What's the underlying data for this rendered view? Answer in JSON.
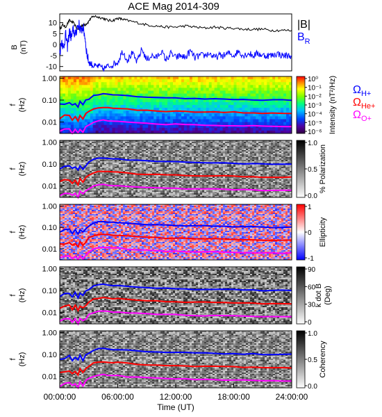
{
  "title": "ACE Mag 2014-309",
  "colors": {
    "btotal": "#000000",
    "br": "#0000ff",
    "h_plus": "#0000ff",
    "he_plus": "#ff0000",
    "o_plus": "#ff00ff"
  },
  "chart_data": [
    {
      "type": "line",
      "panel": "magnetic-field",
      "ylabel_line1": "B",
      "ylabel_line2": "(nT)",
      "yticks": [
        "10",
        "5",
        "0",
        "-5",
        "-10"
      ],
      "ylim": [
        -12,
        14
      ],
      "xlim_hours": [
        0,
        24
      ],
      "legend": [
        {
          "label": "|B|",
          "color": "#000000"
        },
        {
          "label": "B",
          "sub": "R",
          "color": "#0000ff"
        }
      ],
      "series": [
        {
          "name": "|B|",
          "x": [
            0,
            0.3,
            0.6,
            1.0,
            1.4,
            1.8,
            2.1,
            2.4,
            2.6,
            2.9,
            3.2,
            3.6,
            4.0,
            4.5,
            5.0,
            5.5,
            6.0,
            6.5,
            7.0,
            8.0,
            9.0,
            10.0,
            11.0,
            12.0,
            13.0,
            14.0,
            15.0,
            16.0,
            17.0,
            18.0,
            19.0,
            20.0,
            21.0,
            22.0,
            23.0,
            24.0
          ],
          "values": [
            7,
            9,
            8,
            11,
            10,
            7,
            8,
            9,
            9,
            10,
            12,
            13,
            12.5,
            12,
            11,
            11,
            12,
            11.5,
            11,
            10,
            9,
            8.5,
            8,
            8,
            8.5,
            8,
            7.5,
            8,
            7.5,
            7.5,
            7,
            7,
            7,
            6.5,
            6.5,
            6.5
          ]
        },
        {
          "name": "B_R",
          "x": [
            0,
            0.2,
            0.4,
            0.6,
            0.8,
            1.0,
            1.2,
            1.4,
            1.6,
            1.8,
            2.0,
            2.2,
            2.4,
            2.6,
            2.8,
            3.0,
            3.3,
            3.6,
            4.0,
            4.5,
            5.0,
            5.5,
            6.0,
            6.5,
            7.0,
            7.5,
            8.0,
            8.5,
            9.0,
            9.5,
            10.0,
            10.5,
            11.0,
            11.5,
            12.0,
            12.5,
            13.0,
            13.5,
            14.0,
            14.5,
            15.0,
            15.5,
            16.0,
            16.5,
            17.0,
            17.5,
            18.0,
            18.5,
            19.0,
            19.5,
            20.0,
            20.5,
            21.0,
            21.5,
            22.0,
            22.5,
            23.0,
            23.5,
            24.0
          ],
          "values": [
            -4,
            2,
            -2,
            5,
            -1,
            6,
            3,
            7,
            4,
            8,
            9,
            6,
            8,
            4,
            -4,
            -8,
            -9,
            -10,
            -10,
            -11,
            -10,
            -9,
            -8,
            -3,
            -7,
            -4,
            -8,
            -2,
            -7,
            -5,
            -6,
            -3,
            -7,
            -4,
            -6,
            -5,
            -6,
            -3,
            -6,
            -5,
            -5,
            -4,
            -6,
            -5,
            -5,
            -4,
            -5,
            -3,
            -5,
            -4,
            -5,
            -4,
            -5,
            -5,
            -5,
            -4,
            -5,
            -5,
            -5
          ]
        }
      ]
    },
    {
      "type": "heatmap",
      "panel": "intensity",
      "colorbar": "rainbow",
      "colorbar_ticks": [
        "10⁰",
        "10⁻¹",
        "10⁻²",
        "10⁻³",
        "10⁻⁴",
        "10⁻⁵",
        "10⁻⁶"
      ],
      "colorbar_label": "Intensity (nT²/Hz)",
      "ylabel_line1": "f",
      "ylabel_line2": "(Hz)",
      "yticks": [
        "1.00",
        "0.10",
        "0.01"
      ],
      "ylim": [
        0.003,
        1.2
      ],
      "yscale": "log",
      "legend": [
        {
          "label": "Ω",
          "sub": "H+",
          "color": "#0000ff"
        },
        {
          "label": "Ω",
          "sub": "He+",
          "color": "#ff0000"
        },
        {
          "label": "Ω",
          "sub": "O+",
          "color": "#ff00ff"
        }
      ]
    },
    {
      "type": "heatmap",
      "panel": "polarization",
      "colorbar": "grayscale",
      "colorbar_ticks": [
        "1.0",
        "0.5",
        "0.0"
      ],
      "colorbar_label": "% Polarization",
      "ylabel_line1": "f",
      "ylabel_line2": "(Hz)",
      "yticks": [
        "1.00",
        "0.10",
        "0.01"
      ],
      "yscale": "log"
    },
    {
      "type": "heatmap",
      "panel": "ellipticity",
      "colorbar": "blue-white-red",
      "colorbar_ticks": [
        "1",
        "0",
        "-1"
      ],
      "colorbar_label": "Ellipticity",
      "ylabel_line1": "f",
      "ylabel_line2": "(Hz)",
      "yticks": [
        "1.00",
        "0.10",
        "0.01"
      ],
      "yscale": "log"
    },
    {
      "type": "heatmap",
      "panel": "k-dot-b",
      "colorbar": "grayscale",
      "colorbar_ticks": [
        "90",
        "60",
        "30",
        "0"
      ],
      "colorbar_label_line1": "k dot B",
      "colorbar_label_line2": "(Deg)",
      "ylabel_line1": "f",
      "ylabel_line2": "(Hz)",
      "yticks": [
        "1.00",
        "0.10",
        "0.01"
      ],
      "yscale": "log"
    },
    {
      "type": "heatmap",
      "panel": "coherency",
      "colorbar": "grayscale",
      "colorbar_ticks": [
        "1.0",
        "0.5",
        "0.0"
      ],
      "colorbar_label": "Coherency",
      "ylabel_line1": "f",
      "ylabel_line2": "(Hz)",
      "yticks": [
        "1.00",
        "0.10",
        "0.01"
      ],
      "yscale": "log"
    }
  ],
  "gyrofrequency_lines": {
    "x_hours": [
      0,
      0.5,
      1.0,
      1.3,
      1.6,
      1.9,
      2.1,
      2.4,
      2.7,
      3.0,
      3.5,
      4.0,
      4.5,
      5.0,
      5.5,
      6.0,
      7.0,
      8.0,
      9.0,
      10.0,
      11.0,
      12.0,
      13.0,
      14.0,
      15.0,
      16.0,
      17.0,
      18.0,
      19.0,
      20.0,
      21.0,
      22.0,
      23.0,
      24.0
    ],
    "h_plus_hz": [
      0.06,
      0.07,
      0.08,
      0.055,
      0.075,
      0.05,
      0.085,
      0.06,
      0.09,
      0.12,
      0.16,
      0.18,
      0.19,
      0.18,
      0.17,
      0.17,
      0.155,
      0.145,
      0.135,
      0.13,
      0.125,
      0.125,
      0.12,
      0.115,
      0.115,
      0.115,
      0.11,
      0.11,
      0.105,
      0.105,
      0.1,
      0.1,
      0.1,
      0.1
    ],
    "he_plus_hz": [
      0.015,
      0.018,
      0.02,
      0.013,
      0.019,
      0.012,
      0.021,
      0.015,
      0.022,
      0.03,
      0.04,
      0.045,
      0.047,
      0.045,
      0.043,
      0.043,
      0.039,
      0.036,
      0.034,
      0.033,
      0.031,
      0.031,
      0.03,
      0.029,
      0.029,
      0.029,
      0.028,
      0.028,
      0.026,
      0.026,
      0.025,
      0.025,
      0.025,
      0.025
    ],
    "o_plus_hz": [
      0.0038,
      0.0045,
      0.005,
      0.0034,
      0.0047,
      0.0031,
      0.0053,
      0.0038,
      0.0056,
      0.0075,
      0.01,
      0.011,
      0.012,
      0.011,
      0.0107,
      0.0107,
      0.0097,
      0.009,
      0.0085,
      0.0082,
      0.0078,
      0.0078,
      0.0075,
      0.0072,
      0.0072,
      0.0072,
      0.0069,
      0.0069,
      0.0066,
      0.0066,
      0.0063,
      0.0063,
      0.0063,
      0.0063
    ]
  },
  "x_axis": {
    "ticks": [
      "00:00:00",
      "06:00:00",
      "12:00:00",
      "18:00:00",
      "24:00:00"
    ],
    "label": "Time (UT)"
  }
}
